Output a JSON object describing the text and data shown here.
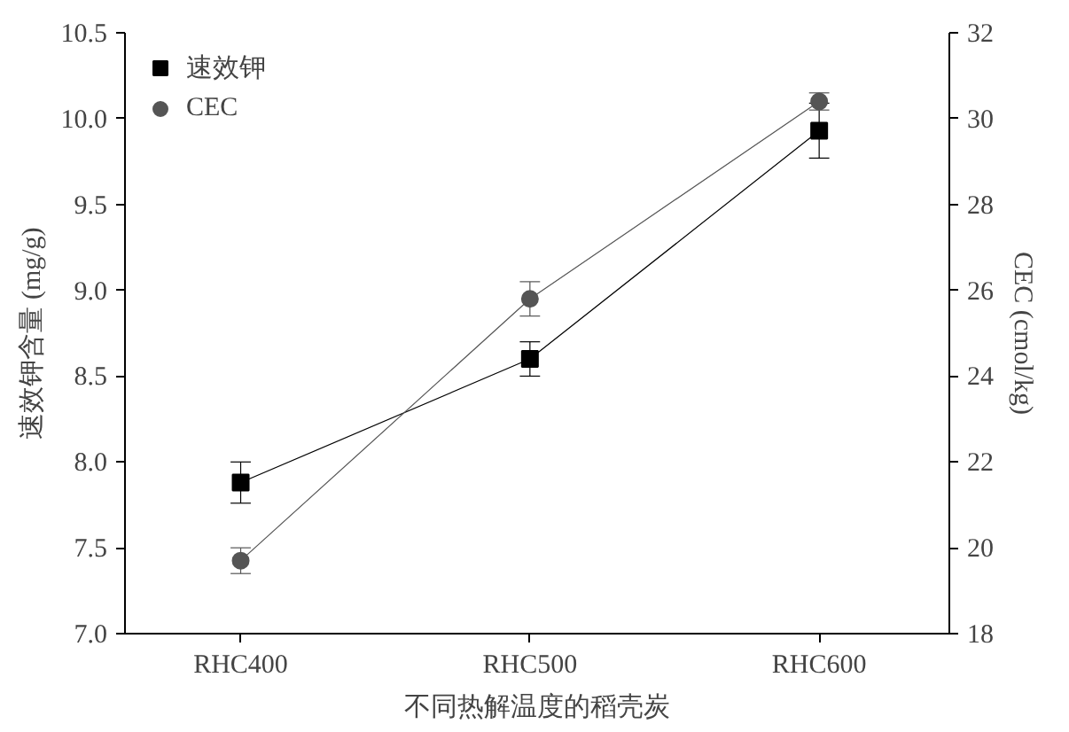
{
  "chart_data": {
    "type": "line",
    "xlabel": "不同热解温度的稻壳炭",
    "ylabel": "速效钾含量 (mg/g)",
    "y2label": "CEC (cmol/kg)",
    "categories": [
      "RHC400",
      "RHC500",
      "RHC600"
    ],
    "series": [
      {
        "name": "速效钾",
        "color": "#000000",
        "marker": "square",
        "values": [
          7.88,
          8.6,
          9.93
        ],
        "errors": [
          0.12,
          0.1,
          0.16
        ]
      },
      {
        "name": "CEC",
        "color": "#555555",
        "marker": "circle",
        "axis": "y2",
        "values": [
          19.7,
          25.8,
          30.4
        ],
        "errors": [
          0.3,
          0.4,
          0.2
        ]
      }
    ],
    "ylim": [
      7.0,
      10.5
    ],
    "yticks": [
      {
        "value": 7,
        "label": "7.0"
      },
      7.5,
      {
        "value": 8,
        "label": "8.0"
      },
      8.5,
      {
        "value": 9,
        "label": "9.0"
      },
      9.5,
      {
        "value": 10,
        "label": "10.0"
      },
      10.5
    ],
    "y2lim": [
      18,
      32
    ],
    "y2ticks": [
      18,
      20,
      22,
      24,
      26,
      28,
      30,
      32
    ],
    "grid": false,
    "legend": "top left",
    "line_style": "solid"
  }
}
